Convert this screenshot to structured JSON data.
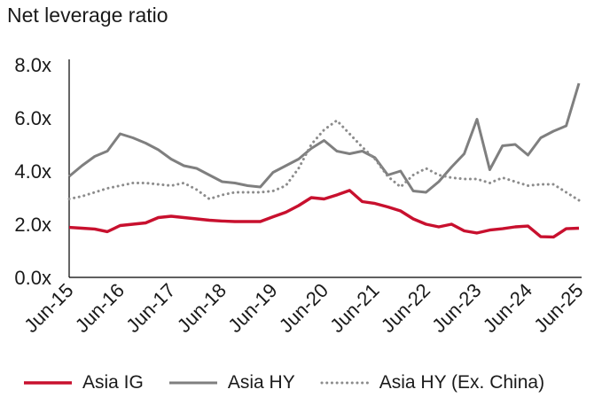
{
  "chart_data": {
    "type": "line",
    "title": "Net leverage ratio",
    "y_unit_suffix": "x",
    "x": [
      "Jun-15",
      "Sep-15",
      "Dec-15",
      "Mar-16",
      "Jun-16",
      "Sep-16",
      "Dec-16",
      "Mar-17",
      "Jun-17",
      "Sep-17",
      "Dec-17",
      "Mar-18",
      "Jun-18",
      "Sep-18",
      "Dec-18",
      "Mar-19",
      "Jun-19",
      "Sep-19",
      "Dec-19",
      "Mar-20",
      "Jun-20",
      "Sep-20",
      "Dec-20",
      "Mar-21",
      "Jun-21",
      "Sep-21",
      "Dec-21",
      "Mar-22",
      "Jun-22",
      "Sep-22",
      "Dec-22",
      "Mar-23",
      "Jun-23",
      "Sep-23",
      "Dec-23",
      "Mar-24",
      "Jun-24",
      "Sep-24",
      "Dec-24",
      "Mar-25",
      "Jun-25"
    ],
    "x_tick_labels": [
      "Jun-15",
      "Jun-16",
      "Jun-17",
      "Jun-18",
      "Jun-19",
      "Jun-20",
      "Jun-21",
      "Jun-22",
      "Jun-23",
      "Jun-24",
      "Jun-25"
    ],
    "x_tick_every": 4,
    "y_ticks": [
      0,
      2,
      4,
      6,
      8
    ],
    "y_tick_labels": [
      "0.0x",
      "2.0x",
      "4.0x",
      "6.0x",
      "8.0x"
    ],
    "ylim": [
      0,
      8
    ],
    "grid": false,
    "legend_position": "bottom",
    "axis_color": "#000000",
    "text_color": "#1a1a1a",
    "series": [
      {
        "name": "Asia IG",
        "color": "#C8102E",
        "line_style": "solid",
        "line_width": 3.4,
        "values": [
          1.88,
          1.85,
          1.82,
          1.72,
          1.95,
          2.0,
          2.05,
          2.25,
          2.3,
          2.25,
          2.2,
          2.15,
          2.12,
          2.1,
          2.1,
          2.1,
          2.28,
          2.45,
          2.7,
          3.0,
          2.95,
          3.1,
          3.27,
          2.85,
          2.78,
          2.65,
          2.5,
          2.2,
          2.0,
          1.9,
          2.0,
          1.75,
          1.67,
          1.78,
          1.83,
          1.9,
          1.93,
          1.53,
          1.52,
          1.83,
          1.85
        ]
      },
      {
        "name": "Asia HY",
        "color": "#7F7F7F",
        "line_style": "solid",
        "line_width": 3.0,
        "values": [
          3.8,
          4.2,
          4.55,
          4.75,
          5.4,
          5.25,
          5.05,
          4.8,
          4.45,
          4.2,
          4.1,
          3.85,
          3.6,
          3.55,
          3.45,
          3.4,
          3.95,
          4.2,
          4.45,
          4.85,
          5.15,
          4.75,
          4.65,
          4.75,
          4.5,
          3.85,
          4.0,
          3.25,
          3.2,
          3.6,
          4.15,
          4.65,
          5.95,
          4.05,
          4.95,
          5.0,
          4.6,
          5.25,
          5.5,
          5.7,
          7.3
        ]
      },
      {
        "name": "Asia HY (Ex. China)",
        "color": "#8C8C8C",
        "line_style": "dotted",
        "line_width": 3.0,
        "values": [
          2.95,
          3.05,
          3.2,
          3.35,
          3.45,
          3.55,
          3.55,
          3.5,
          3.45,
          3.55,
          3.3,
          2.95,
          3.1,
          3.2,
          3.2,
          3.2,
          3.25,
          3.45,
          4.1,
          5.0,
          5.55,
          5.9,
          5.4,
          4.9,
          4.45,
          3.8,
          3.4,
          3.85,
          4.1,
          3.85,
          3.75,
          3.7,
          3.7,
          3.55,
          3.75,
          3.6,
          3.45,
          3.5,
          3.5,
          3.2,
          2.9
        ]
      }
    ]
  }
}
